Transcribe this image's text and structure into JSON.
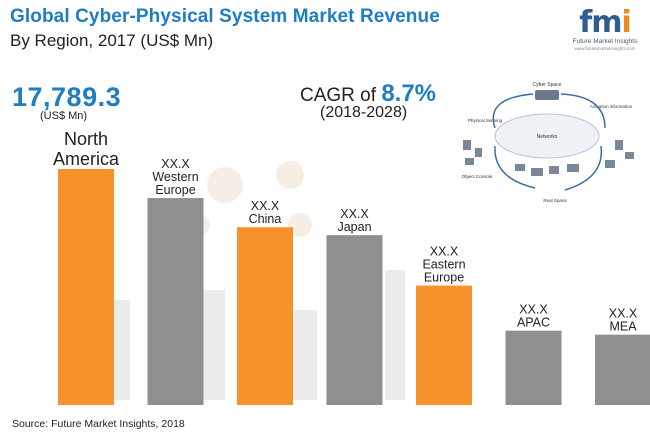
{
  "title": "Global Cyber-Physical System Market Revenue",
  "subtitle": "By Region, 2017 (US$ Mn)",
  "logo": {
    "mark_left": "fm",
    "mark_i": "i",
    "text": "Future Market Insights",
    "url": "www.futuremarketinsights.com"
  },
  "highlight": {
    "value": "17,789.3",
    "unit": "(US$ Mn)"
  },
  "cagr": {
    "prefix": "CAGR of",
    "value": "8.7%",
    "period": "(2018-2028)"
  },
  "diagram": {
    "cyber_space": "Cyber Space",
    "networks": "Networks",
    "physical_sensing": "Physical Sensing",
    "actuation": "Actuation information",
    "object_console": "Object Console",
    "real_space": "Real Space"
  },
  "source": "Source: Future Market Insights, 2018",
  "colors": {
    "orange": "#f7912c",
    "gray": "#8f8f90",
    "blue": "#1e7dc3"
  },
  "chart_data": {
    "type": "bar",
    "title": "Global Cyber-Physical System Market Revenue",
    "subtitle": "By Region, 2017 (US$ Mn)",
    "categories": [
      "North America",
      "Western Europe",
      "China",
      "Japan",
      "Eastern Europe",
      "APAC",
      "MEA"
    ],
    "category_lines": [
      [
        "North",
        "America"
      ],
      [
        "Western",
        "Europe"
      ],
      [
        "China"
      ],
      [
        "Japan"
      ],
      [
        "Eastern",
        "Europe"
      ],
      [
        "APAC"
      ],
      [
        "MEA"
      ]
    ],
    "value_labels": [
      "",
      "XX.X",
      "XX.X",
      "XX.X",
      "XX.X",
      "XX.X",
      "XX.X"
    ],
    "values": [
      17789.3,
      15600,
      13400,
      12800,
      9000,
      5600,
      5300
    ],
    "bar_colors": [
      "#f7912c",
      "#8f8f90",
      "#f7912c",
      "#8f8f90",
      "#f7912c",
      "#8f8f90",
      "#8f8f90"
    ],
    "unit": "US$ Mn",
    "ylim": [
      0,
      17789.3
    ],
    "grid": false,
    "legend": "none"
  }
}
